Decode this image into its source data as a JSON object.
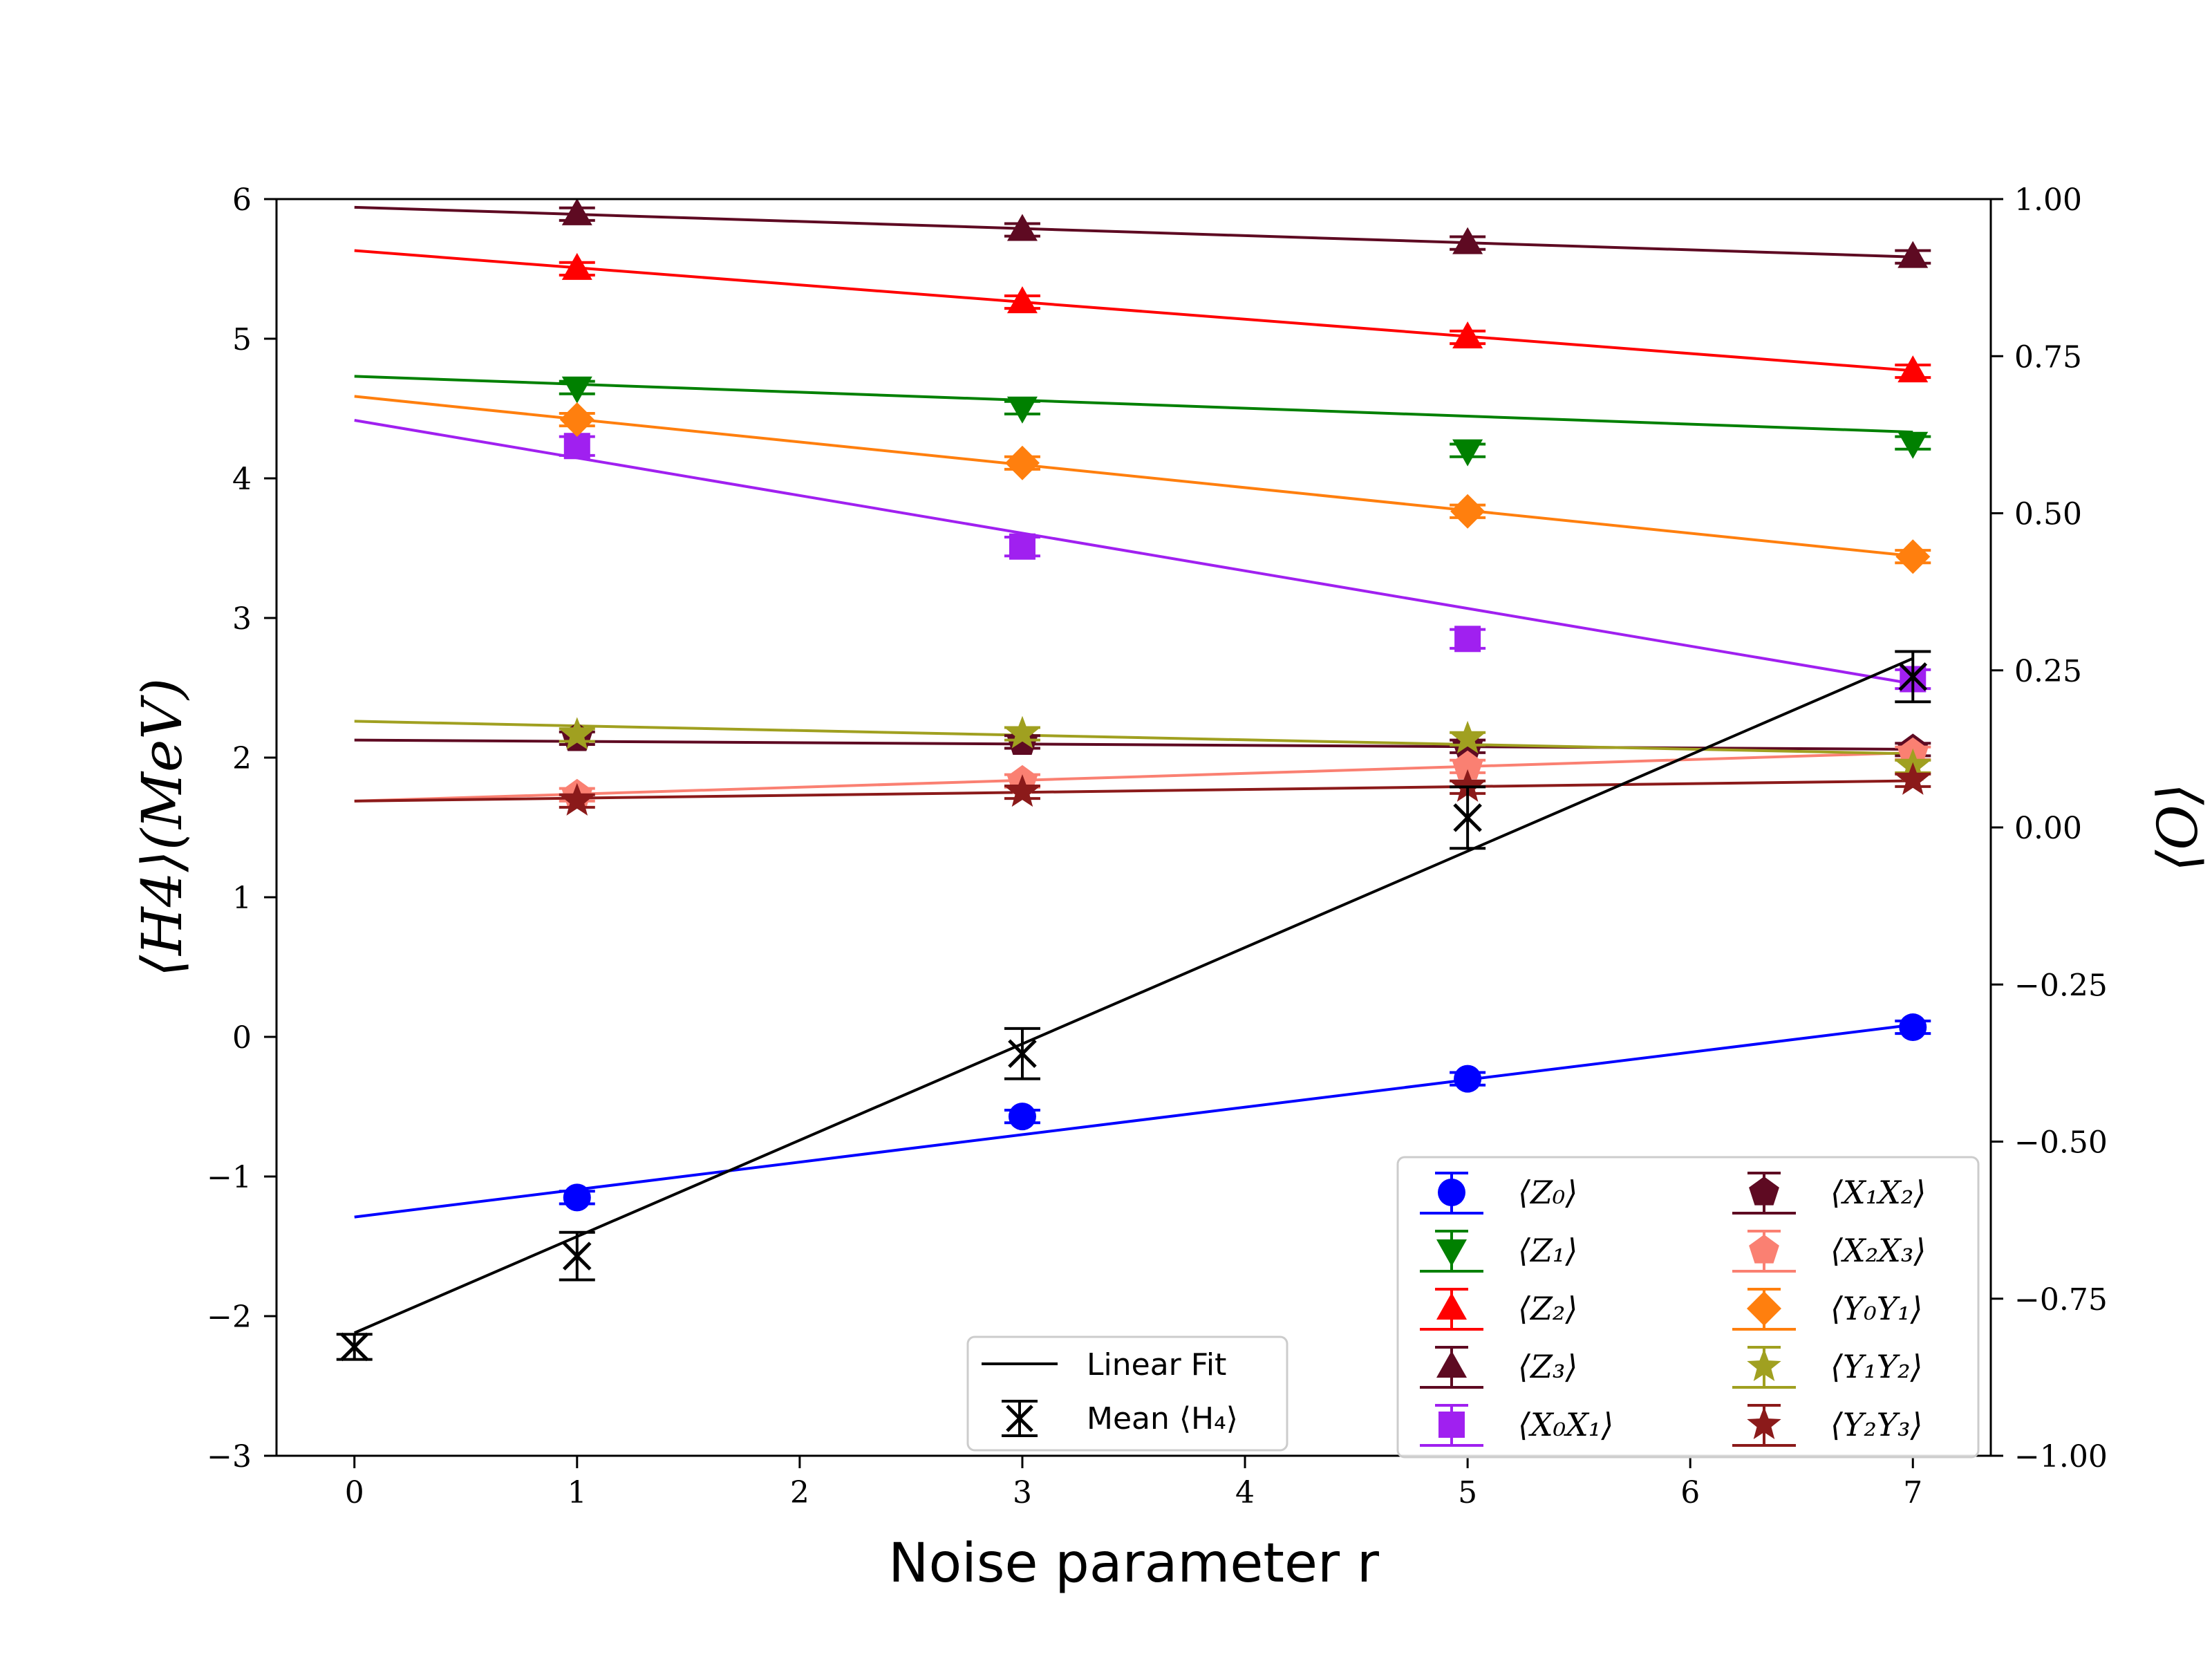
{
  "chart_data": {
    "type": "scatter",
    "x_label": "Noise parameter r",
    "y_label_left": "⟨H4⟩(MeV)",
    "y_label_right": "⟨O⟩",
    "x_range": [
      -0.35,
      7.35
    ],
    "y_left_range": [
      -3,
      6
    ],
    "y_right_range": [
      -1.0,
      1.0
    ],
    "x_ticks": [
      "0",
      "1",
      "2",
      "3",
      "4",
      "5",
      "6",
      "7"
    ],
    "y_left_ticks": [
      "−3",
      "−2",
      "−1",
      "0",
      "1",
      "2",
      "3",
      "4",
      "5",
      "6"
    ],
    "y_right_ticks": [
      "−1.00",
      "−0.75",
      "−0.50",
      "−0.25",
      "0.00",
      "0.25",
      "0.50",
      "0.75",
      "1.00"
    ],
    "mean_series": {
      "name": "Mean ⟨H₄⟩",
      "color": "#000000",
      "marker": "x",
      "x": [
        0,
        1,
        3,
        5,
        7
      ],
      "y": [
        -2.22,
        -1.57,
        -0.12,
        1.57,
        2.58
      ],
      "err": [
        0.09,
        0.17,
        0.18,
        0.22,
        0.18
      ],
      "fit": {
        "slope": 0.69,
        "intercept": -2.12
      }
    },
    "fit_legend_label": "Linear Fit",
    "series": [
      {
        "name": "⟨Z₀⟩",
        "color": "#0000ff",
        "marker": "circle",
        "x": [
          1,
          3,
          5,
          7
        ],
        "y": [
          -0.589,
          -0.46,
          -0.4,
          -0.318
        ],
        "err": [
          0.01,
          0.01,
          0.01,
          0.01
        ],
        "fit": {
          "slope": 0.0437,
          "intercept": -0.62
        }
      },
      {
        "name": "⟨Z₁⟩",
        "color": "#008000",
        "marker": "triangle-down",
        "x": [
          1,
          3,
          5,
          7
        ],
        "y": [
          0.7,
          0.668,
          0.6,
          0.612
        ],
        "err": [
          0.01,
          0.01,
          0.01,
          0.01
        ],
        "fit": {
          "slope": -0.0127,
          "intercept": 0.718
        }
      },
      {
        "name": "⟨Z₂⟩",
        "color": "#ff0000",
        "marker": "triangle-up",
        "x": [
          1,
          3,
          5,
          7
        ],
        "y": [
          0.889,
          0.836,
          0.78,
          0.726
        ],
        "err": [
          0.01,
          0.01,
          0.01,
          0.01
        ],
        "fit": {
          "slope": -0.0273,
          "intercept": 0.918
        }
      },
      {
        "name": "⟨Z₃⟩",
        "color": "#5e0a22",
        "marker": "triangle-up",
        "x": [
          1,
          3,
          5,
          7
        ],
        "y": [
          0.976,
          0.951,
          0.93,
          0.908
        ],
        "err": [
          0.01,
          0.01,
          0.01,
          0.01
        ],
        "fit": {
          "slope": -0.0113,
          "intercept": 0.987
        }
      },
      {
        "name": "⟨X₀X₁⟩",
        "color": "#a020f0",
        "marker": "square",
        "x": [
          1,
          3,
          5,
          7
        ],
        "y": [
          0.607,
          0.447,
          0.3,
          0.236
        ],
        "err": [
          0.015,
          0.015,
          0.015,
          0.015
        ],
        "fit": {
          "slope": -0.0599,
          "intercept": 0.648
        }
      },
      {
        "name": "⟨X₁X₂⟩",
        "color": "#5e0a22",
        "marker": "pentagon",
        "x": [
          1,
          3,
          5,
          7
        ],
        "y": [
          0.142,
          0.136,
          0.129,
          0.124
        ],
        "err": [
          0.01,
          0.01,
          0.01,
          0.01
        ],
        "fit": {
          "slope": -0.0021,
          "intercept": 0.139
        }
      },
      {
        "name": "⟨X₂X₃⟩",
        "color": "#fa8072",
        "marker": "pentagon",
        "x": [
          1,
          3,
          5,
          7
        ],
        "y": [
          0.052,
          0.074,
          0.097,
          0.118
        ],
        "err": [
          0.01,
          0.01,
          0.01,
          0.01
        ],
        "fit": {
          "slope": 0.011,
          "intercept": 0.042
        }
      },
      {
        "name": "⟨Y₀Y₁⟩",
        "color": "#ff7f0e",
        "marker": "diamond",
        "x": [
          1,
          3,
          5,
          7
        ],
        "y": [
          0.649,
          0.58,
          0.503,
          0.431
        ],
        "err": [
          0.01,
          0.01,
          0.01,
          0.01
        ],
        "fit": {
          "slope": -0.0363,
          "intercept": 0.686
        }
      },
      {
        "name": "⟨Y₁Y₂⟩",
        "color": "#a0a020",
        "marker": "star",
        "x": [
          1,
          3,
          5,
          7
        ],
        "y": [
          0.147,
          0.149,
          0.141,
          0.097
        ],
        "err": [
          0.01,
          0.01,
          0.01,
          0.01
        ],
        "fit": {
          "slope": -0.0074,
          "intercept": 0.169
        }
      },
      {
        "name": "⟨Y₂Y₃⟩",
        "color": "#8b1a1a",
        "marker": "star",
        "x": [
          1,
          3,
          5,
          7
        ],
        "y": [
          0.042,
          0.056,
          0.064,
          0.075
        ],
        "err": [
          0.01,
          0.01,
          0.01,
          0.01
        ],
        "fit": {
          "slope": 0.0046,
          "intercept": 0.042
        }
      }
    ]
  }
}
